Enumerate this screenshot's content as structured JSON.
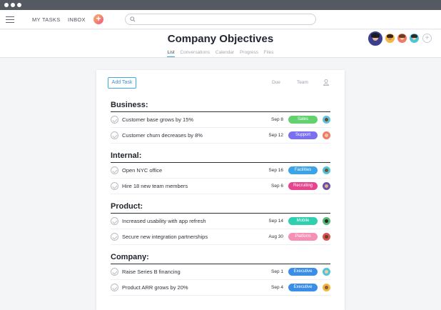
{
  "topbar": {
    "my_tasks": "MY TASKS",
    "inbox": "INBOX",
    "add_label": "+",
    "search_placeholder": ""
  },
  "project": {
    "title": "Company Objectives",
    "tabs": [
      {
        "label": "List",
        "active": true
      },
      {
        "label": "Conversations",
        "active": false
      },
      {
        "label": "Calendar",
        "active": false
      },
      {
        "label": "Progress",
        "active": false
      },
      {
        "label": "Files",
        "active": false
      }
    ],
    "members_add_label": "+"
  },
  "list": {
    "add_task_label": "Add Task",
    "columns": {
      "due": "Due",
      "team": "Team"
    },
    "sections": [
      {
        "title": "Business:",
        "tasks": [
          {
            "name": "Customer base grows by 15%",
            "due": "Sep 8",
            "team": "Sales",
            "team_color": "#62d26f"
          },
          {
            "name": "Customer churn decreases by 8%",
            "due": "Sep 12",
            "team": "Support",
            "team_color": "#7a6ff0"
          }
        ]
      },
      {
        "title": "Internal:",
        "tasks": [
          {
            "name": "Open NYC office",
            "due": "Sep 16",
            "team": "Facilities",
            "team_color": "#3ba4e8"
          },
          {
            "name": "Hire 18 new team members",
            "due": "Sep 6",
            "team": "Recruiting",
            "team_color": "#e8438f"
          }
        ]
      },
      {
        "title": "Product:",
        "tasks": [
          {
            "name": "Increased usability with app refresh",
            "due": "Sep 14",
            "team": "Mobile",
            "team_color": "#2fcfb0"
          },
          {
            "name": "Secure new integration partnerships",
            "due": "Aug 30",
            "team": "Platform",
            "team_color": "#f68fb6"
          }
        ]
      },
      {
        "title": "Company:",
        "tasks": [
          {
            "name": "Raise Series B financing",
            "due": "Sep 1",
            "team": "Executive",
            "team_color": "#3b8ee8"
          },
          {
            "name": "Product ARR grows by 20%",
            "due": "Sep 4",
            "team": "Executive",
            "team_color": "#3b8ee8"
          }
        ]
      }
    ]
  }
}
